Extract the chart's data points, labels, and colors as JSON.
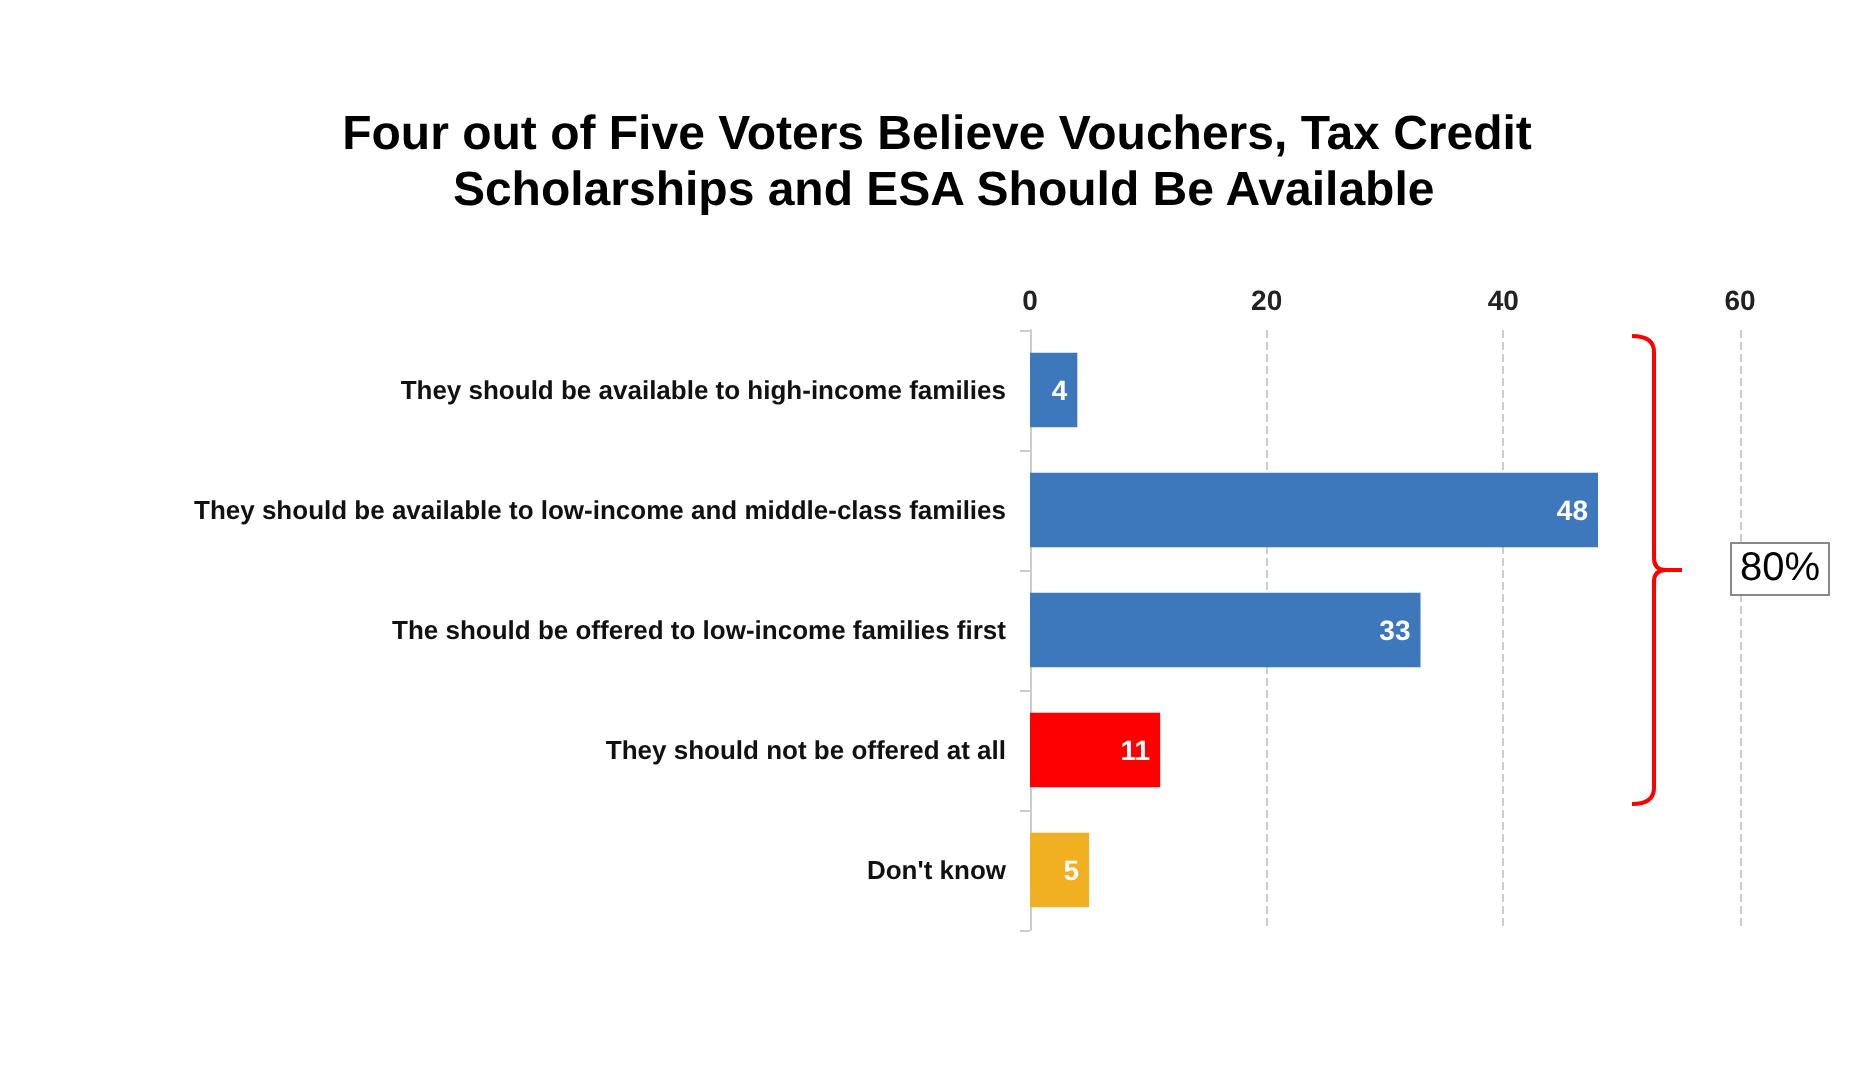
{
  "chart_data": {
    "type": "bar",
    "orientation": "horizontal",
    "title": "Four out of Five Voters Believe Vouchers, Tax Credit Scholarships and ESA Should Be Available",
    "categories": [
      "They should be available to high-income families",
      "They should be available to low-income and middle-class families",
      "The should be offered to low-income families first",
      "They should not be offered at all",
      "Don't know"
    ],
    "values": [
      4,
      48,
      33,
      11,
      5
    ],
    "colors": [
      "#3d78bd",
      "#3d78bd",
      "#3d78bd",
      "#ff0000",
      "#f0b022"
    ],
    "xlim": [
      0,
      60
    ],
    "xticks": [
      0,
      20,
      40,
      60
    ],
    "grid": "x",
    "data_labels": true,
    "annotations": [
      "80%"
    ]
  }
}
